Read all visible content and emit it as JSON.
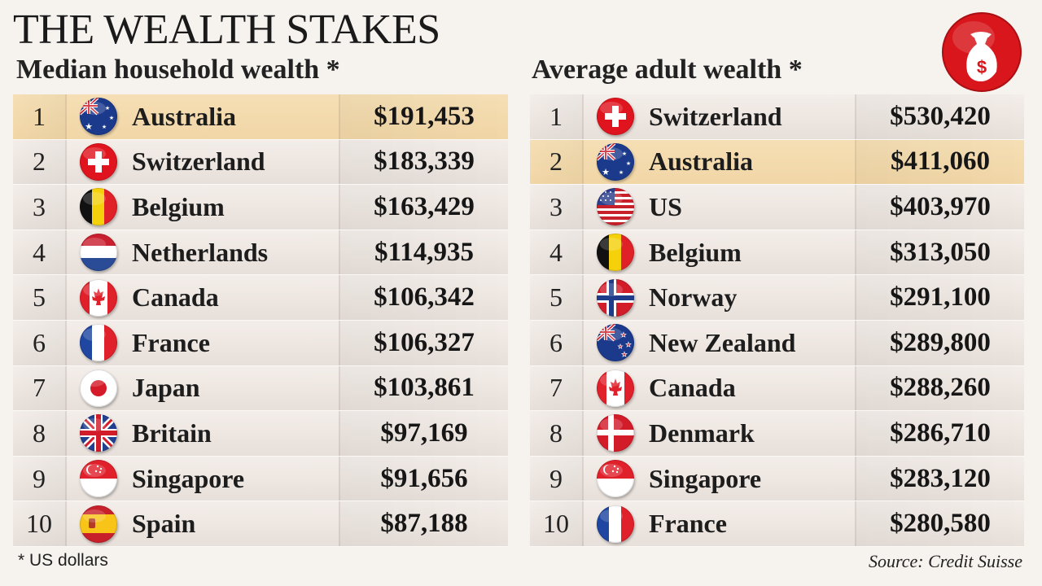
{
  "title": "THE WEALTH STAKES",
  "left_panel": {
    "heading": "Median household wealth *",
    "rows": [
      {
        "rank": "1",
        "country": "Australia",
        "value": "$191,453",
        "flag": "australia-flag-icon"
      },
      {
        "rank": "2",
        "country": "Switzerland",
        "value": "$183,339",
        "flag": "switzerland-flag-icon"
      },
      {
        "rank": "3",
        "country": "Belgium",
        "value": "$163,429",
        "flag": "belgium-flag-icon"
      },
      {
        "rank": "4",
        "country": "Netherlands",
        "value": "$114,935",
        "flag": "netherlands-flag-icon"
      },
      {
        "rank": "5",
        "country": "Canada",
        "value": "$106,342",
        "flag": "canada-flag-icon"
      },
      {
        "rank": "6",
        "country": "France",
        "value": "$106,327",
        "flag": "france-flag-icon"
      },
      {
        "rank": "7",
        "country": "Japan",
        "value": "$103,861",
        "flag": "japan-flag-icon"
      },
      {
        "rank": "8",
        "country": "Britain",
        "value": "$97,169",
        "flag": "uk-flag-icon"
      },
      {
        "rank": "9",
        "country": "Singapore",
        "value": "$91,656",
        "flag": "singapore-flag-icon"
      },
      {
        "rank": "10",
        "country": "Spain",
        "value": "$87,188",
        "flag": "spain-flag-icon"
      }
    ]
  },
  "right_panel": {
    "heading": "Average adult wealth *",
    "rows": [
      {
        "rank": "1",
        "country": "Switzerland",
        "value": "$530,420",
        "flag": "switzerland-flag-icon"
      },
      {
        "rank": "2",
        "country": "Australia",
        "value": "$411,060",
        "flag": "australia-flag-icon"
      },
      {
        "rank": "3",
        "country": "US",
        "value": "$403,970",
        "flag": "us-flag-icon"
      },
      {
        "rank": "4",
        "country": "Belgium",
        "value": "$313,050",
        "flag": "belgium-flag-icon"
      },
      {
        "rank": "5",
        "country": "Norway",
        "value": "$291,100",
        "flag": "norway-flag-icon"
      },
      {
        "rank": "6",
        "country": "New Zealand",
        "value": "$289,800",
        "flag": "new-zealand-flag-icon"
      },
      {
        "rank": "7",
        "country": "Canada",
        "value": "$288,260",
        "flag": "canada-flag-icon"
      },
      {
        "rank": "8",
        "country": "Denmark",
        "value": "$286,710",
        "flag": "denmark-flag-icon"
      },
      {
        "rank": "9",
        "country": "Singapore",
        "value": "$283,120",
        "flag": "singapore-flag-icon"
      },
      {
        "rank": "10",
        "country": "France",
        "value": "$280,580",
        "flag": "france-flag-icon"
      }
    ]
  },
  "highlight_color": "#f6dfb5",
  "logo_icon": "money-bag-icon",
  "logo_color": "#d8161b",
  "footnote": "* US dollars",
  "source": "Source: Credit Suisse"
}
